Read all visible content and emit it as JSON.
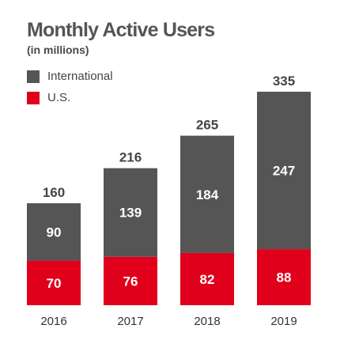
{
  "chart_data": {
    "type": "bar",
    "stacked": true,
    "title": "Monthly Active Users",
    "subtitle": "(in millions)",
    "categories": [
      "2016",
      "2017",
      "2018",
      "2019"
    ],
    "series": [
      {
        "name": "U.S.",
        "color": "#e0001b",
        "values": [
          70,
          76,
          82,
          88
        ]
      },
      {
        "name": "International",
        "color": "#555555",
        "values": [
          90,
          139,
          184,
          247
        ]
      }
    ],
    "totals": [
      160,
      216,
      265,
      335
    ],
    "legend_placement": "top-left",
    "legend_order": [
      "International",
      "U.S."
    ],
    "grid": false,
    "ylim": [
      0,
      335
    ]
  }
}
